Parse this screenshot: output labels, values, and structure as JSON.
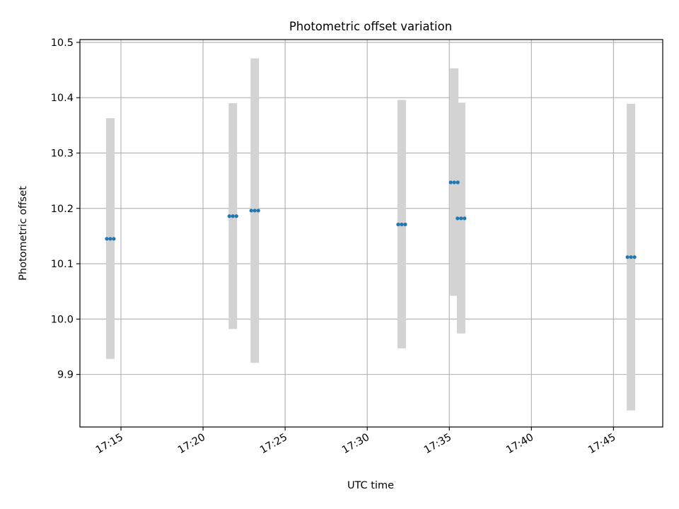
{
  "chart_data": {
    "type": "scatter",
    "title": "Photometric offset variation",
    "xlabel": "UTC time",
    "ylabel": "Photometric offset",
    "xlim": [
      "17:12:30",
      "17:48:00"
    ],
    "ylim": [
      9.805,
      10.505
    ],
    "grid": true,
    "x_ticks": [
      "17:15",
      "17:20",
      "17:25",
      "17:30",
      "17:35",
      "17:40",
      "17:45"
    ],
    "y_ticks": [
      "9.9",
      "10.0",
      "10.1",
      "10.2",
      "10.3",
      "10.4",
      "10.5"
    ],
    "points": [
      {
        "x": "17:14:21",
        "y": 10.145,
        "low": 9.928,
        "high": 10.363
      },
      {
        "x": "17:21:49",
        "y": 10.186,
        "low": 9.982,
        "high": 10.39
      },
      {
        "x": "17:23:09",
        "y": 10.196,
        "low": 9.921,
        "high": 10.471
      },
      {
        "x": "17:32:06",
        "y": 10.171,
        "low": 9.947,
        "high": 10.396
      },
      {
        "x": "17:35:18",
        "y": 10.247,
        "low": 10.042,
        "high": 10.453
      },
      {
        "x": "17:35:43",
        "y": 10.182,
        "low": 9.974,
        "high": 10.391
      },
      {
        "x": "17:46:04",
        "y": 10.112,
        "low": 9.835,
        "high": 10.389
      }
    ],
    "colors": {
      "point": "#1f77b4",
      "errorbar": "#d3d3d3",
      "grid": "#b0b0b0"
    }
  }
}
